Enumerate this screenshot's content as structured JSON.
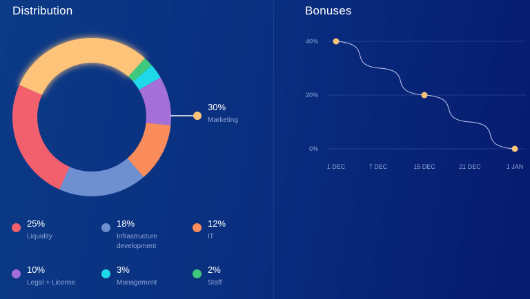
{
  "panels": {
    "distribution_title": "Distribution",
    "bonuses_title": "Bonuses"
  },
  "callout": {
    "percent": "30%",
    "label": "Marketing"
  },
  "legend": [
    {
      "percent": "25%",
      "label": "Liquidity",
      "color": "#f2606e"
    },
    {
      "percent": "18%",
      "label": "Infrastructure development",
      "color": "#6e8fd0"
    },
    {
      "percent": "12%",
      "label": "IT",
      "color": "#fb8d5c"
    },
    {
      "percent": "10%",
      "label": "Legal + License",
      "color": "#a46fd6"
    },
    {
      "percent": "3%",
      "label": "Management",
      "color": "#1fd8e8"
    },
    {
      "percent": "2%",
      "label": "Staff",
      "color": "#3dc97c"
    }
  ],
  "chart_data": [
    {
      "type": "pie",
      "title": "Distribution",
      "donut": true,
      "slices": [
        {
          "label": "Marketing",
          "value": 30,
          "color": "#ffc37a"
        },
        {
          "label": "Staff",
          "value": 2,
          "color": "#3dc97c"
        },
        {
          "label": "Management",
          "value": 3,
          "color": "#1fd8e8"
        },
        {
          "label": "Legal + License",
          "value": 10,
          "color": "#a46fd6"
        },
        {
          "label": "IT",
          "value": 12,
          "color": "#fb8d5c"
        },
        {
          "label": "Infrastructure development",
          "value": 18,
          "color": "#6e8fd0"
        },
        {
          "label": "Liquidity",
          "value": 25,
          "color": "#f2606e"
        }
      ],
      "highlighted": "Marketing"
    },
    {
      "type": "line",
      "title": "Bonuses",
      "x_ticks": [
        "1 DEC",
        "7 DEC",
        "15 DEC",
        "21 DEC",
        "1 JAN"
      ],
      "y_ticks": [
        "40%",
        "20%",
        "0%"
      ],
      "ylim": [
        0,
        40
      ],
      "points": [
        {
          "x": "1 DEC",
          "y": 40
        },
        {
          "x": "15 DEC",
          "y": 20
        },
        {
          "x": "1 JAN",
          "y": 0
        }
      ],
      "line_color": "#c7cdf0",
      "point_color": "#ffc37a",
      "grid": true
    }
  ]
}
